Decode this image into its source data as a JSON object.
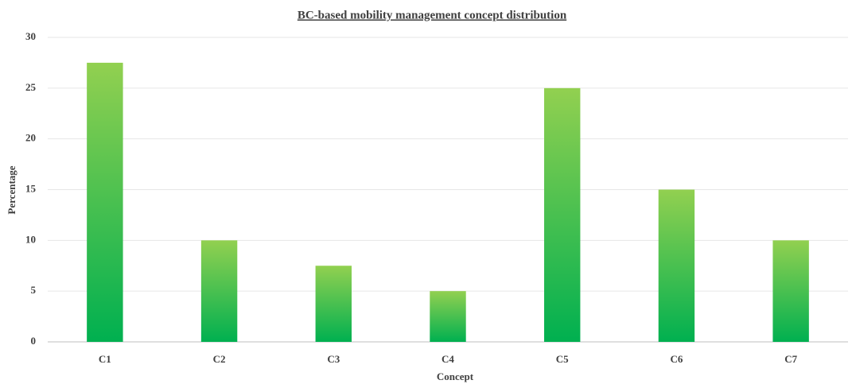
{
  "chart_data": {
    "type": "bar",
    "title": "BC-based mobility management concept distribution",
    "x_label": "Concept",
    "y_label": "Percentage",
    "categories": [
      "C1",
      "C2",
      "C3",
      "C4",
      "C5",
      "C6",
      "C7"
    ],
    "values": [
      27.5,
      10,
      7.5,
      5,
      25,
      15,
      10
    ],
    "color": {
      "top": "#92d050",
      "bottom": "#00b050"
    },
    "ylim": [
      0,
      30
    ],
    "yticks": [
      0,
      5,
      10,
      15,
      20,
      25,
      30
    ],
    "grid": true
  }
}
